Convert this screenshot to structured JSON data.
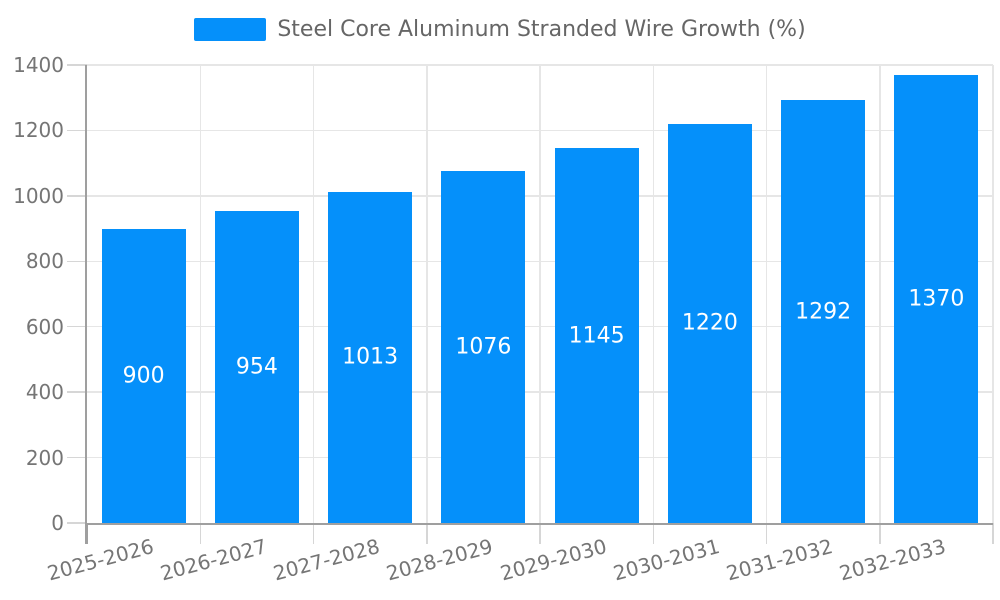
{
  "legend": {
    "label": "Steel Core Aluminum Stranded Wire Growth (%)"
  },
  "colors": {
    "bar": "#0590fa",
    "gridline": "#e6e6e6",
    "tick": "#d6d6d6",
    "axis": "#9f9f9f",
    "tick_label": "#757575",
    "legend_text": "#666666",
    "bar_label": "#ffffff",
    "background": "#ffffff"
  },
  "chart_data": {
    "type": "bar",
    "title": "Steel Core Aluminum Stranded Wire Growth (%)",
    "categories": [
      "2025-2026",
      "2026-2027",
      "2027-2028",
      "2028-2029",
      "2029-2030",
      "2030-2031",
      "2031-2032",
      "2032-2033"
    ],
    "values": [
      900,
      954,
      1013,
      1076,
      1145,
      1220,
      1292,
      1370
    ],
    "series": [
      {
        "name": "Steel Core Aluminum Stranded Wire Growth (%)",
        "values": [
          900,
          954,
          1013,
          1076,
          1145,
          1220,
          1292,
          1370
        ]
      }
    ],
    "xlabel": "",
    "ylabel": "",
    "ylim": [
      0,
      1400
    ],
    "yticks": [
      0,
      200,
      400,
      600,
      800,
      1000,
      1200,
      1400
    ],
    "grid": true,
    "legend_position": "top-center",
    "bar_label_position": "inside-center",
    "x_label_rotation_deg": -15
  }
}
